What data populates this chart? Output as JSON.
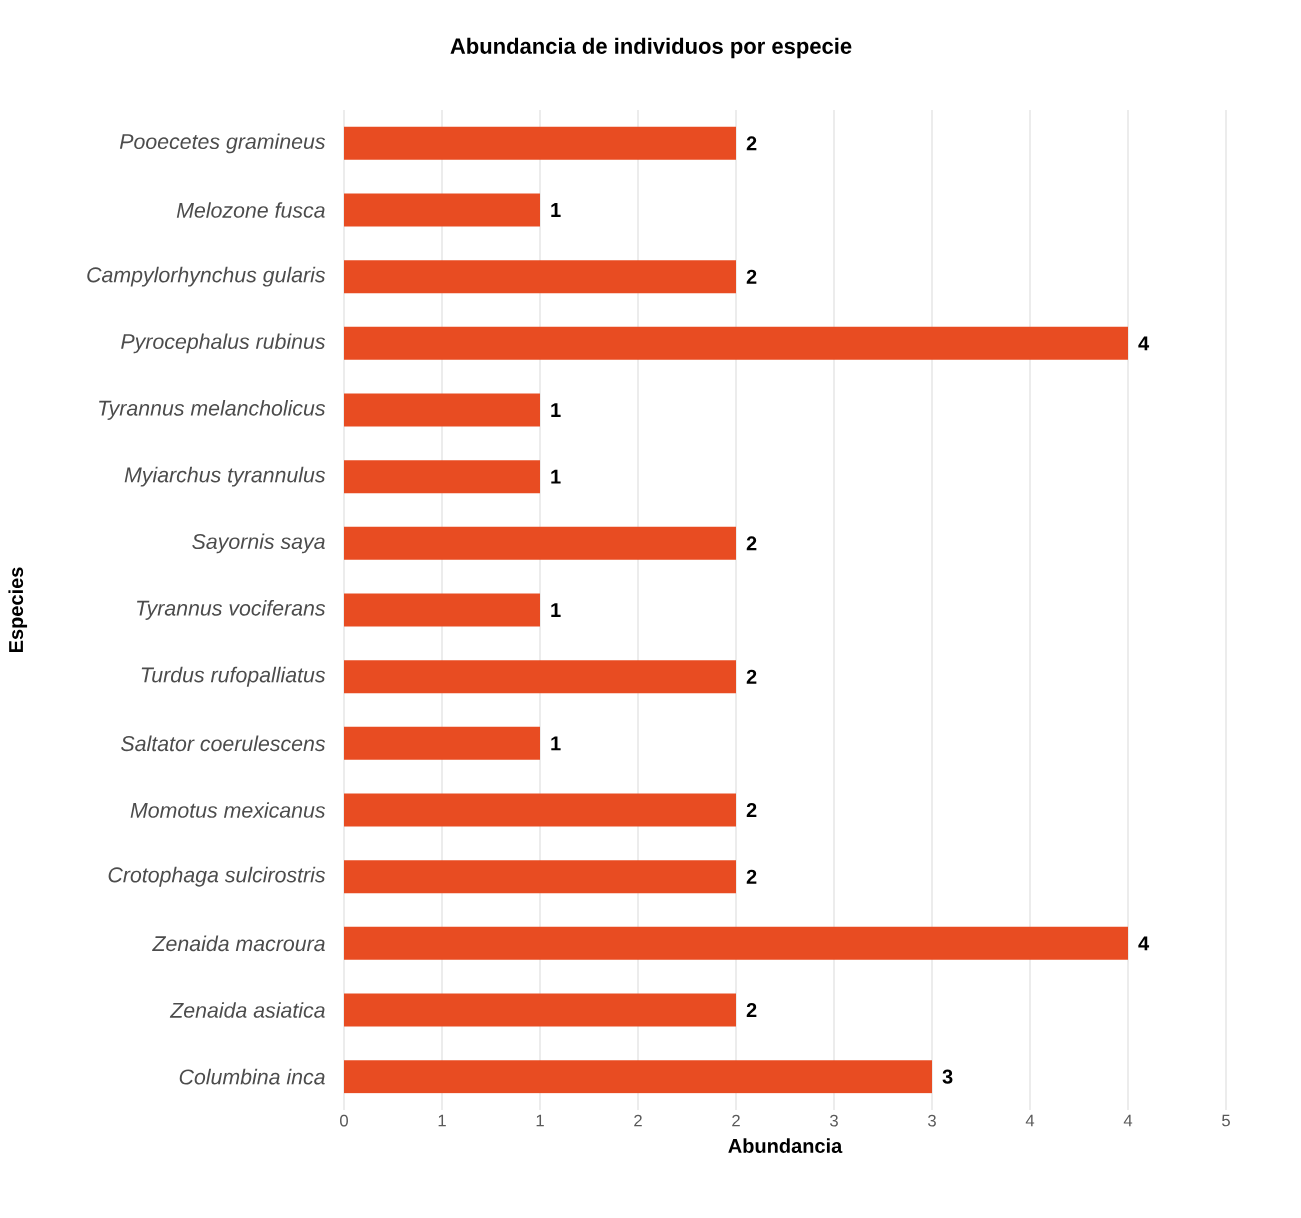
{
  "chart_data": {
    "type": "bar",
    "orientation": "horizontal",
    "title": "Abundancia de individuos por especie",
    "xlabel": "Abundancia",
    "ylabel": "Especies",
    "categories": [
      "Pooecetes gramineus",
      "Melozone fusca",
      "Campylorhynchus gularis",
      "Pyrocephalus rubinus",
      "Tyrannus melancholicus",
      "Myiarchus tyrannulus",
      "Sayornis saya",
      "Tyrannus vociferans",
      "Turdus rufopalliatus",
      "Saltator coerulescens",
      "Momotus mexicanus",
      "Crotophaga sulcirostris",
      "Zenaida macroura",
      "Zenaida asiatica",
      "Columbina inca"
    ],
    "values": [
      2,
      1,
      2,
      4,
      1,
      1,
      2,
      1,
      2,
      1,
      2,
      2,
      4,
      2,
      3
    ],
    "color": "#e84c22",
    "data_labels": true,
    "grid": "x",
    "xlim": [
      0,
      4.5
    ],
    "xticks": [
      0,
      {
        "value": 0.5,
        "label": "1"
      },
      1,
      {
        "value": 1.5,
        "label": "2"
      },
      2,
      {
        "value": 2.5,
        "label": "3"
      },
      3,
      {
        "value": 3.5,
        "label": "4"
      },
      4,
      {
        "value": 4.5,
        "label": "5"
      }
    ]
  }
}
